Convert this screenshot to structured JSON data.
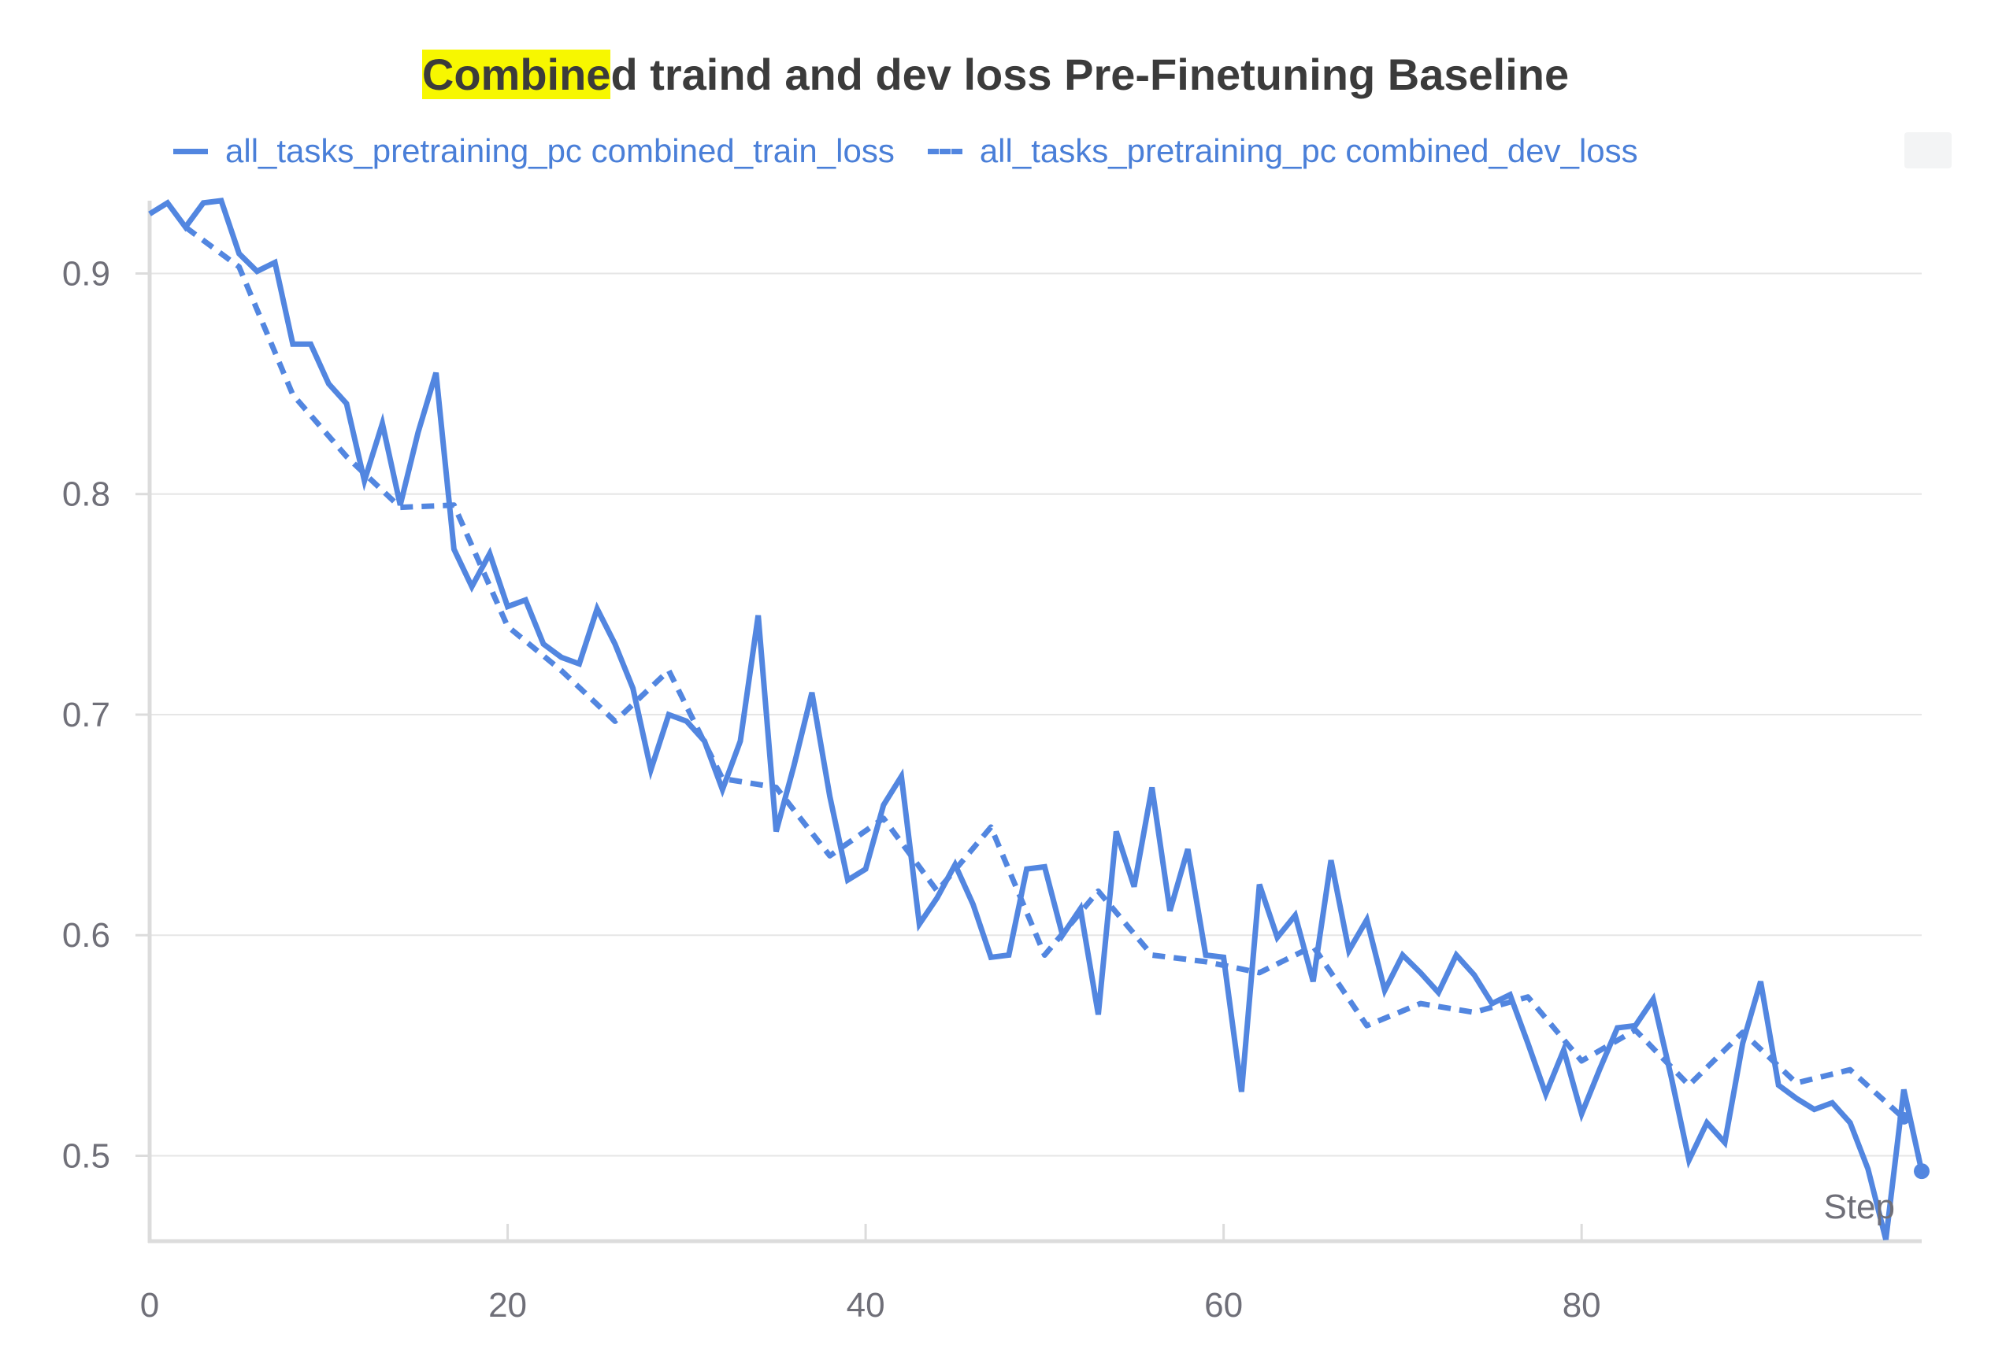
{
  "title": {
    "highlight": "Combine",
    "rest": "d traind and dev loss Pre-Finetuning Baseline"
  },
  "legend": {
    "train": "all_tasks_pretraining_pc combined_train_loss",
    "dev": "all_tasks_pretraining_pc combined_dev_loss"
  },
  "colors": {
    "series": "#5286e0",
    "grid": "#e6e6e6",
    "axis": "#dcdcdc"
  },
  "chart_data": {
    "type": "line",
    "title": "Combined traind and dev loss Pre-Finetuning Baseline",
    "xlabel": "Step",
    "ylabel": "",
    "xlim": [
      0,
      99
    ],
    "ylim": [
      0.462,
      0.933
    ],
    "xticks": [
      0,
      20,
      40,
      60,
      80
    ],
    "yticks": [
      0.5,
      0.6,
      0.7,
      0.8,
      0.9
    ],
    "series": [
      {
        "name": "all_tasks_pretraining_pc combined_train_loss",
        "style": "solid",
        "x": [
          0,
          1,
          2,
          3,
          4,
          5,
          6,
          7,
          8,
          9,
          10,
          11,
          12,
          13,
          14,
          15,
          16,
          17,
          18,
          19,
          20,
          21,
          22,
          23,
          24,
          25,
          26,
          27,
          28,
          29,
          30,
          31,
          32,
          33,
          34,
          35,
          36,
          37,
          38,
          39,
          40,
          41,
          42,
          43,
          44,
          45,
          46,
          47,
          48,
          49,
          50,
          51,
          52,
          53,
          54,
          55,
          56,
          57,
          58,
          59,
          60,
          61,
          62,
          63,
          64,
          65,
          66,
          67,
          68,
          69,
          70,
          71,
          72,
          73,
          74,
          75,
          76,
          77,
          78,
          79,
          80,
          81,
          82,
          83,
          84,
          85,
          86,
          87,
          88,
          89,
          90,
          91,
          92,
          93,
          94,
          95,
          96,
          97,
          98,
          99
        ],
        "y": [
          0.927,
          0.932,
          0.921,
          0.932,
          0.933,
          0.909,
          0.901,
          0.905,
          0.868,
          0.868,
          0.85,
          0.841,
          0.806,
          0.832,
          0.795,
          0.828,
          0.855,
          0.775,
          0.758,
          0.773,
          0.749,
          0.752,
          0.732,
          0.726,
          0.723,
          0.748,
          0.732,
          0.712,
          0.675,
          0.7,
          0.697,
          0.688,
          0.666,
          0.688,
          0.745,
          0.647,
          0.677,
          0.71,
          0.663,
          0.625,
          0.63,
          0.659,
          0.672,
          0.605,
          0.617,
          0.632,
          0.614,
          0.59,
          0.591,
          0.63,
          0.631,
          0.6,
          0.612,
          0.564,
          0.647,
          0.622,
          0.667,
          0.611,
          0.639,
          0.591,
          0.59,
          0.529,
          0.623,
          0.599,
          0.609,
          0.579,
          0.634,
          0.593,
          0.607,
          0.575,
          0.591,
          0.583,
          0.574,
          0.591,
          0.582,
          0.569,
          0.573,
          0.551,
          0.528,
          0.548,
          0.519,
          0.539,
          0.558,
          0.559,
          0.571,
          0.536,
          0.498,
          0.515,
          0.506,
          0.551,
          0.579,
          0.532,
          0.526,
          0.521,
          0.524,
          0.515,
          0.494,
          0.462,
          0.53,
          0.493
        ]
      },
      {
        "name": "all_tasks_pretraining_pc combined_dev_loss",
        "style": "dashed",
        "x": [
          2,
          5,
          8,
          11,
          14,
          17,
          20,
          23,
          26,
          29,
          32,
          35,
          38,
          41,
          44,
          47,
          50,
          53,
          56,
          59,
          62,
          65,
          68,
          71,
          74,
          77,
          80,
          83,
          86,
          89,
          92,
          95,
          98
        ],
        "y": [
          0.921,
          0.903,
          0.845,
          0.817,
          0.794,
          0.795,
          0.74,
          0.72,
          0.697,
          0.72,
          0.671,
          0.667,
          0.636,
          0.653,
          0.62,
          0.649,
          0.591,
          0.62,
          0.591,
          0.588,
          0.583,
          0.595,
          0.559,
          0.569,
          0.565,
          0.572,
          0.543,
          0.557,
          0.532,
          0.556,
          0.533,
          0.539,
          0.517
        ]
      }
    ]
  }
}
